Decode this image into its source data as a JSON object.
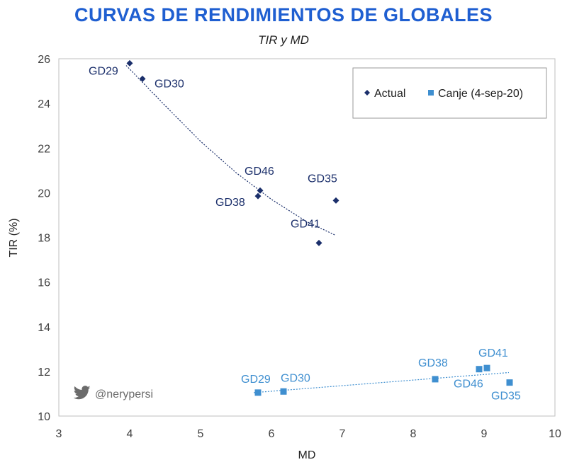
{
  "chart_data": {
    "type": "scatter",
    "title": "CURVAS DE RENDIMIENTOS DE GLOBALES",
    "subtitle": "TIR y MD",
    "xlabel": "MD",
    "ylabel": "TIR (%)",
    "xlim": [
      3,
      10
    ],
    "ylim": [
      10,
      26
    ],
    "xticks": [
      3,
      4,
      5,
      6,
      7,
      8,
      9,
      10
    ],
    "yticks": [
      10,
      12,
      14,
      16,
      18,
      20,
      22,
      24,
      26
    ],
    "grid": false,
    "legend_position": "top-right",
    "series": [
      {
        "name": "Actual",
        "marker": "diamond",
        "color": "#1b2f6b",
        "points": [
          {
            "label": "GD29",
            "x": 4.0,
            "y": 25.8
          },
          {
            "label": "GD30",
            "x": 4.18,
            "y": 25.1
          },
          {
            "label": "GD46",
            "x": 5.84,
            "y": 20.1
          },
          {
            "label": "GD38",
            "x": 5.81,
            "y": 19.85
          },
          {
            "label": "GD35",
            "x": 6.91,
            "y": 19.65
          },
          {
            "label": "GD41",
            "x": 6.67,
            "y": 17.75
          }
        ],
        "trendline": [
          [
            3.95,
            25.7
          ],
          [
            4.5,
            23.9
          ],
          [
            5.0,
            22.3
          ],
          [
            5.5,
            20.9
          ],
          [
            6.0,
            19.7
          ],
          [
            6.5,
            18.7
          ],
          [
            6.9,
            18.1
          ]
        ]
      },
      {
        "name": "Canje (4-sep-20)",
        "marker": "square",
        "color": "#3f8fd0",
        "points": [
          {
            "label": "GD29",
            "x": 5.81,
            "y": 11.05
          },
          {
            "label": "GD30",
            "x": 6.17,
            "y": 11.1
          },
          {
            "label": "GD38",
            "x": 8.31,
            "y": 11.65
          },
          {
            "label": "GD46",
            "x": 8.93,
            "y": 12.1
          },
          {
            "label": "GD41",
            "x": 9.04,
            "y": 12.15
          },
          {
            "label": "GD35",
            "x": 9.36,
            "y": 11.5
          }
        ],
        "trendline": [
          [
            5.75,
            11.05
          ],
          [
            9.35,
            11.95
          ]
        ]
      }
    ]
  },
  "watermark": {
    "icon": "twitter-bird-icon",
    "text": "@nerypersi"
  }
}
